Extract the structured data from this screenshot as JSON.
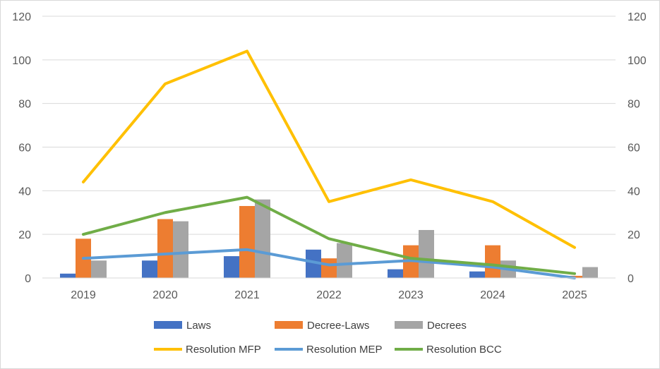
{
  "chart_data": {
    "type": "bar+line",
    "categories": [
      "2019",
      "2020",
      "2021",
      "2022",
      "2023",
      "2024",
      "2025"
    ],
    "ylim": [
      0,
      120
    ],
    "y_ticks": [
      "0",
      "20",
      "40",
      "60",
      "80",
      "100",
      "120"
    ],
    "y2lim": [
      0,
      120
    ],
    "y2_ticks": [
      "0",
      "20",
      "40",
      "60",
      "80",
      "100",
      "120"
    ],
    "grid": true,
    "legend_position": "bottom",
    "bar_series": [
      {
        "name": "Laws",
        "color": "#4472c4",
        "values": [
          2,
          8,
          10,
          13,
          4,
          3,
          0
        ]
      },
      {
        "name": "Decree-Laws",
        "color": "#ed7d31",
        "values": [
          18,
          27,
          33,
          9,
          15,
          15,
          1
        ]
      },
      {
        "name": "Decrees",
        "color": "#a5a5a5",
        "values": [
          8,
          26,
          36,
          16,
          22,
          8,
          5
        ]
      }
    ],
    "line_series": [
      {
        "name": "Resolution MFP",
        "color": "#ffc000",
        "values": [
          44,
          89,
          104,
          35,
          45,
          35,
          14
        ]
      },
      {
        "name": "Resolution MEP",
        "color": "#5b9bd5",
        "values": [
          9,
          11,
          13,
          6,
          8,
          5,
          0
        ]
      },
      {
        "name": "Resolution BCC",
        "color": "#70ad47",
        "values": [
          20,
          30,
          37,
          18,
          9,
          6,
          2
        ]
      }
    ]
  }
}
